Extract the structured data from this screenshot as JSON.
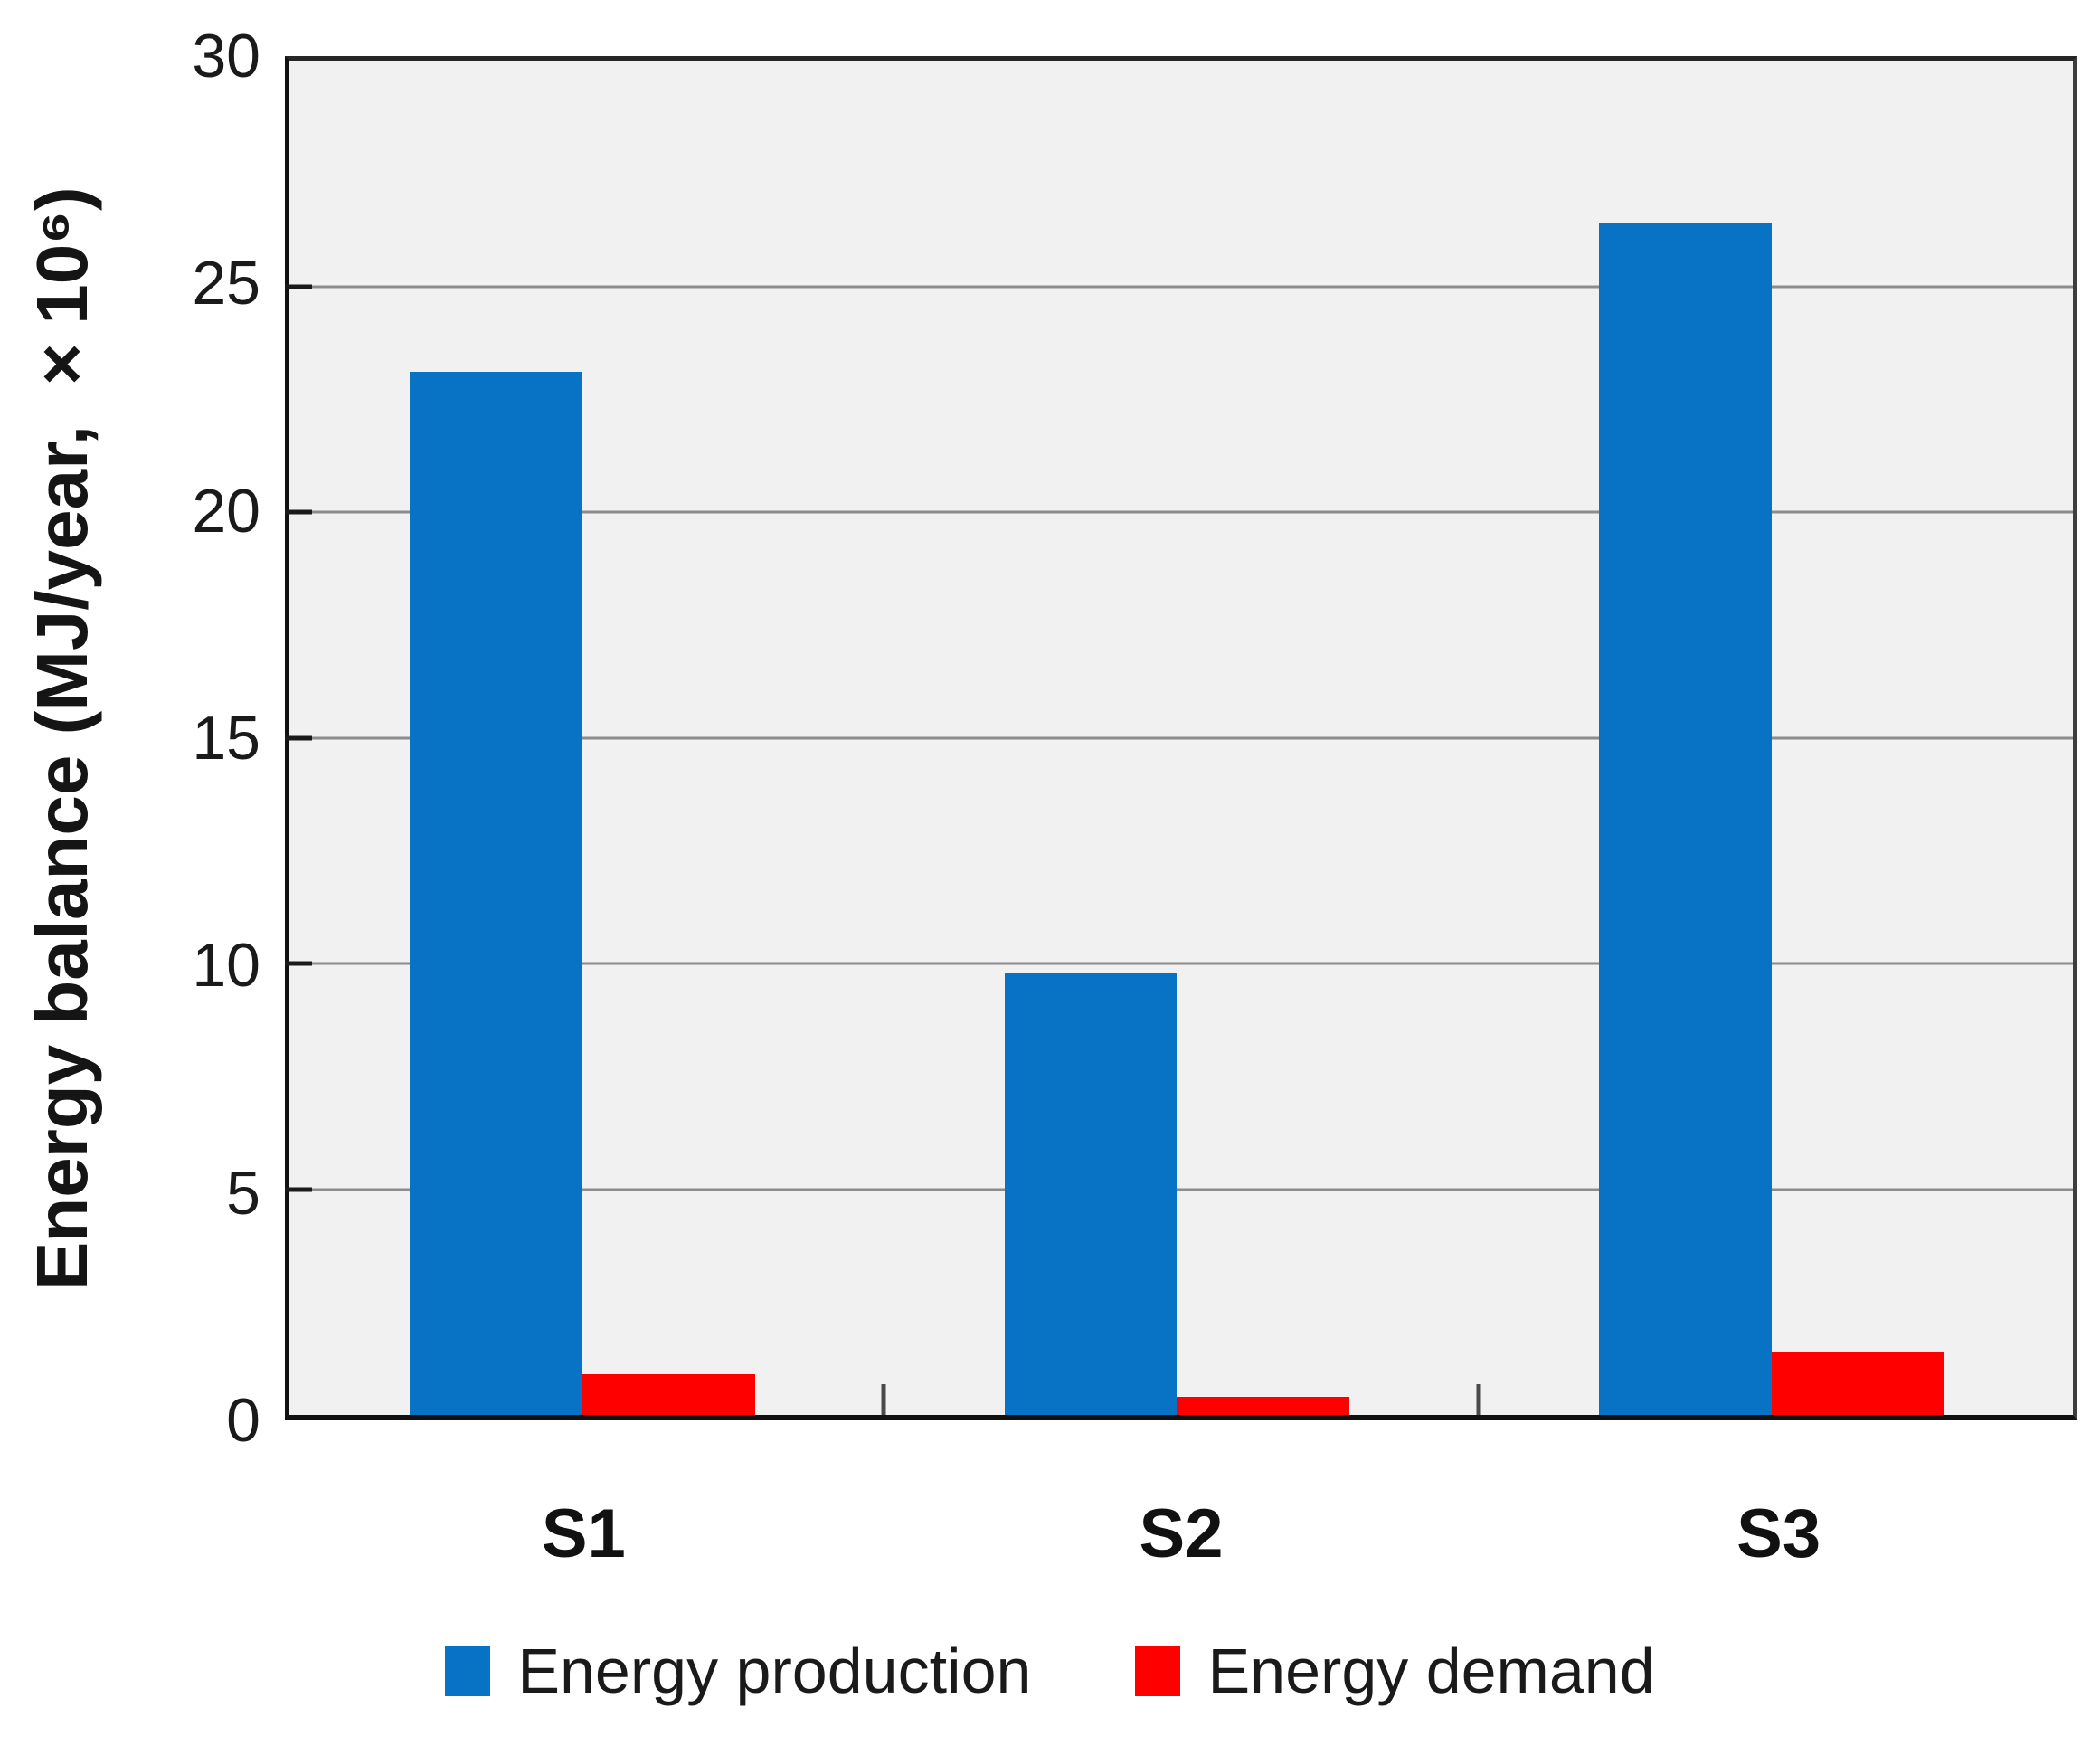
{
  "chart_data": {
    "type": "bar",
    "title": "",
    "categories": [
      "S1",
      "S2",
      "S3"
    ],
    "series": [
      {
        "name": "Energy production",
        "color": "#0872C4",
        "values": [
          23.1,
          9.8,
          26.4
        ]
      },
      {
        "name": "Energy demand",
        "color": "#FF0000",
        "values": [
          0.9,
          0.4,
          1.4
        ]
      }
    ],
    "xlabel": "",
    "ylabel": "Energy balance (MJ/year, ×10⁶)",
    "ylim": [
      0,
      30
    ],
    "yticks": [
      0,
      5,
      10,
      15,
      20,
      25,
      30
    ],
    "grid": "horizontal gridlines every 5 units",
    "legend_position": "bottom",
    "plot_background_color": "#F1F1F1",
    "gridline_color": "#8C8C8C",
    "axis_frame_color": "#1A1A1A"
  }
}
